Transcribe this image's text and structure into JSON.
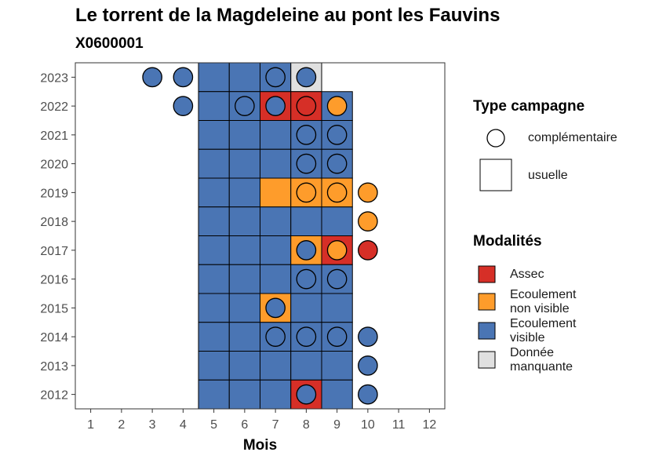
{
  "header": {
    "title": "Le torrent de la Magdeleine au pont les Fauvins",
    "subtitle": "X0600001"
  },
  "legend_type": {
    "title": "Type campagne",
    "items": [
      {
        "label": "complémentaire",
        "shape": "circle"
      },
      {
        "label": "usuelle",
        "shape": "square"
      }
    ]
  },
  "legend_modalites": {
    "title": "Modalités",
    "items": [
      {
        "label_line1": "Assec",
        "label_line2": "",
        "color": "#D62F27"
      },
      {
        "label_line1": "Ecoulement",
        "label_line2": "non visible",
        "color": "#FE9C2B"
      },
      {
        "label_line1": "Ecoulement",
        "label_line2": "visible",
        "color": "#4A75B4"
      },
      {
        "label_line1": "Donnée",
        "label_line2": "manquante",
        "color": "#E0E0E0"
      }
    ]
  },
  "chart_data": {
    "type": "heatmap",
    "xlabel": "Mois",
    "ylabel": "",
    "x_ticks": [
      1,
      2,
      3,
      4,
      5,
      6,
      7,
      8,
      9,
      10,
      11,
      12
    ],
    "y_ticks": [
      2012,
      2013,
      2014,
      2015,
      2016,
      2017,
      2018,
      2019,
      2020,
      2021,
      2022,
      2023
    ],
    "xlim": [
      0.5,
      12.5
    ],
    "ylim": [
      2011.5,
      2023.5
    ],
    "usuelle_cells": [
      {
        "year": 2023,
        "months": [
          "A",
          "A",
          "A",
          "M"
        ]
      },
      {
        "year": 2022,
        "months": [
          "A",
          "A",
          "S",
          "S",
          "A"
        ]
      },
      {
        "year": 2021,
        "months": [
          "A",
          "A",
          "A",
          "A",
          "A"
        ]
      },
      {
        "year": 2020,
        "months": [
          "A",
          "A",
          "A",
          "A",
          "A"
        ]
      },
      {
        "year": 2019,
        "months": [
          "A",
          "A",
          "N",
          "N",
          "N"
        ]
      },
      {
        "year": 2018,
        "months": [
          "A",
          "A",
          "A",
          "A",
          "A"
        ]
      },
      {
        "year": 2017,
        "months": [
          "A",
          "A",
          "A",
          "N",
          "S"
        ]
      },
      {
        "year": 2016,
        "months": [
          "A",
          "A",
          "A",
          "A",
          "A"
        ]
      },
      {
        "year": 2015,
        "months": [
          "A",
          "A",
          "N",
          "A",
          "A"
        ]
      },
      {
        "year": 2014,
        "months": [
          "A",
          "A",
          "A",
          "A",
          "A"
        ]
      },
      {
        "year": 2013,
        "months": [
          "A",
          "A",
          "A",
          "A",
          "A"
        ]
      },
      {
        "year": 2012,
        "months": [
          "A",
          "A",
          "A",
          "S",
          "A"
        ]
      }
    ],
    "usuelle_first_month": 5,
    "complementaire_points": [
      {
        "year": 2023,
        "month": 3,
        "m": "A"
      },
      {
        "year": 2023,
        "month": 4,
        "m": "A"
      },
      {
        "year": 2023,
        "month": 7,
        "m": "A"
      },
      {
        "year": 2023,
        "month": 8,
        "m": "A"
      },
      {
        "year": 2022,
        "month": 4,
        "m": "A"
      },
      {
        "year": 2022,
        "month": 6,
        "m": "A"
      },
      {
        "year": 2022,
        "month": 7,
        "m": "A"
      },
      {
        "year": 2022,
        "month": 8,
        "m": "S"
      },
      {
        "year": 2022,
        "month": 9,
        "m": "N"
      },
      {
        "year": 2021,
        "month": 8,
        "m": "A"
      },
      {
        "year": 2021,
        "month": 9,
        "m": "A"
      },
      {
        "year": 2020,
        "month": 8,
        "m": "A"
      },
      {
        "year": 2020,
        "month": 9,
        "m": "A"
      },
      {
        "year": 2019,
        "month": 8,
        "m": "N"
      },
      {
        "year": 2019,
        "month": 9,
        "m": "N"
      },
      {
        "year": 2019,
        "month": 10,
        "m": "N"
      },
      {
        "year": 2018,
        "month": 10,
        "m": "N"
      },
      {
        "year": 2017,
        "month": 8,
        "m": "A"
      },
      {
        "year": 2017,
        "month": 9,
        "m": "N"
      },
      {
        "year": 2017,
        "month": 10,
        "m": "S"
      },
      {
        "year": 2016,
        "month": 8,
        "m": "A"
      },
      {
        "year": 2016,
        "month": 9,
        "m": "A"
      },
      {
        "year": 2015,
        "month": 7,
        "m": "A"
      },
      {
        "year": 2014,
        "month": 7,
        "m": "A"
      },
      {
        "year": 2014,
        "month": 8,
        "m": "A"
      },
      {
        "year": 2014,
        "month": 9,
        "m": "A"
      },
      {
        "year": 2014,
        "month": 10,
        "m": "A"
      },
      {
        "year": 2013,
        "month": 10,
        "m": "A"
      },
      {
        "year": 2012,
        "month": 8,
        "m": "A"
      },
      {
        "year": 2012,
        "month": 10,
        "m": "A"
      }
    ],
    "code_colors": {
      "S": "#D62F27",
      "N": "#FE9C2B",
      "A": "#4A75B4",
      "M": "#E0E0E0"
    }
  }
}
